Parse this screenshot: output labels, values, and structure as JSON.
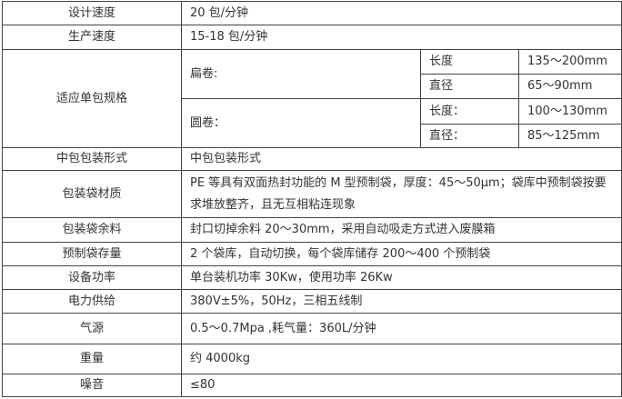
{
  "rows": [
    {
      "label": "设计速度",
      "value": "20 包/分钟"
    },
    {
      "label": "生产速度",
      "value": "15-18 包/分钟"
    },
    {
      "label": "适应单包规格",
      "groups": [
        {
          "name": "扁卷:",
          "items": [
            {
              "k": "长度",
              "v": "135～200mm"
            },
            {
              "k": "直径",
              "v": "65～90mm"
            }
          ]
        },
        {
          "name": "圆卷：",
          "items": [
            {
              "k": "长度：",
              "v": "100～130mm"
            },
            {
              "k": "直径：",
              "v": "85～125mm"
            }
          ]
        }
      ]
    },
    {
      "label": "中包包装形式",
      "value": "中包包装形式"
    },
    {
      "label": "包装袋材质",
      "value": "PE 等具有双面热封功能的 M 型预制袋，厚度：45～50μm；袋库中预制袋按要求堆放整齐，且无互相粘连现象"
    },
    {
      "label": "包装袋余料",
      "value": "封口切掉余料 20～30mm，采用自动吸走方式进入废膜箱"
    },
    {
      "label": "预制袋存量",
      "value": "2 个袋库，自动切换，每个袋库储存 200～400 个预制袋"
    },
    {
      "label": "设备功率",
      "value": "单台装机功率 30Kw，使用功率 26Kw"
    },
    {
      "label": "电力供给",
      "value": "380V±5%，50Hz，三相五线制"
    },
    {
      "label": "气源",
      "value": "0.5～0.7Mpa ,耗气量：360L/分钟"
    },
    {
      "label": "重量",
      "value": "约 4000kg"
    },
    {
      "label": "噪音",
      "value": "≤80"
    }
  ]
}
